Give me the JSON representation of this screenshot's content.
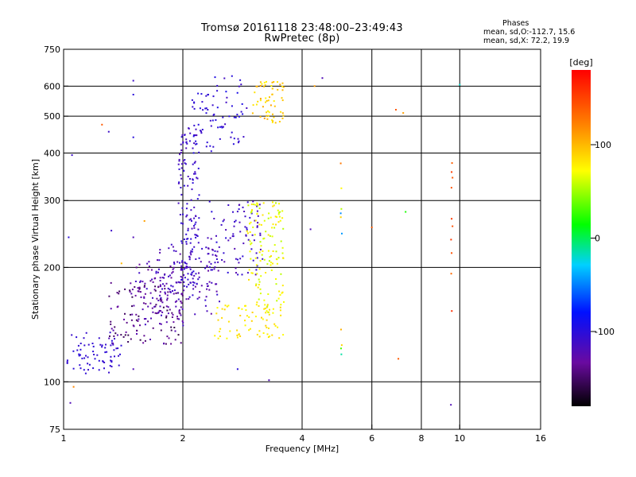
{
  "title_line1": "Tromsø 20161118 23:48:00–23:49:43",
  "title_line2": "RwPretec (8p)",
  "phases": {
    "heading": "Phases",
    "o_line": "mean, sd,O:-112.7, 15.6",
    "x_line": "mean, sd,X:  72.2, 19.9"
  },
  "colorbar": {
    "unit_label": "[deg]",
    "min": -180,
    "max": 180,
    "ticks": [
      100,
      0,
      -100
    ]
  },
  "chart_data": {
    "type": "scatter",
    "xlabel": "Frequency [MHz]",
    "ylabel": "Stationary phase Virtual Height [km]",
    "x_scale": "log",
    "y_scale": "log",
    "xlim": [
      1,
      16
    ],
    "ylim": [
      75,
      750
    ],
    "x_ticks": [
      1,
      2,
      4,
      6,
      8,
      10,
      16
    ],
    "x_grid": [
      1,
      2,
      4,
      6,
      8,
      10,
      16
    ],
    "y_ticks": [
      75,
      100,
      200,
      300,
      400,
      500,
      600,
      750
    ],
    "y_grid": [
      100,
      200,
      300,
      400,
      500,
      600
    ],
    "grid": true,
    "point_color_by": "phase_deg",
    "clusters": [
      {
        "x": [
          1.02,
          1.4
        ],
        "y": [
          105,
          135
        ],
        "phase": [
          -110,
          -100
        ],
        "n": 70
      },
      {
        "x": [
          1.3,
          2.0
        ],
        "y": [
          125,
          185
        ],
        "phase": [
          -160,
          -120
        ],
        "n": 120
      },
      {
        "x": [
          1.5,
          2.05
        ],
        "y": [
          140,
          210
        ],
        "phase": [
          -140,
          -110
        ],
        "n": 90
      },
      {
        "x": [
          1.7,
          2.5
        ],
        "y": [
          150,
          230
        ],
        "phase": [
          -130,
          -105
        ],
        "n": 110
      },
      {
        "x": [
          1.95,
          2.2
        ],
        "y": [
          180,
          470
        ],
        "phase": [
          -120,
          -100
        ],
        "n": 140
      },
      {
        "x": [
          2.1,
          2.4
        ],
        "y": [
          400,
          580
        ],
        "phase": [
          -110,
          -95
        ],
        "n": 40
      },
      {
        "x": [
          2.3,
          3.2
        ],
        "y": [
          190,
          300
        ],
        "phase": [
          -125,
          -100
        ],
        "n": 90
      },
      {
        "x": [
          2.4,
          2.9
        ],
        "y": [
          420,
          640
        ],
        "phase": [
          -115,
          -90
        ],
        "n": 40
      },
      {
        "x": [
          2.4,
          3.6
        ],
        "y": [
          130,
          160
        ],
        "phase": [
          70,
          90
        ],
        "n": 70
      },
      {
        "x": [
          2.9,
          3.6
        ],
        "y": [
          150,
          300
        ],
        "phase": [
          55,
          85
        ],
        "n": 130
      },
      {
        "x": [
          3.0,
          3.6
        ],
        "y": [
          480,
          620
        ],
        "phase": [
          75,
          110
        ],
        "n": 60
      },
      {
        "x": [
          9.5,
          9.6
        ],
        "y": [
          125,
          380
        ],
        "phase": [
          130,
          160
        ],
        "n": 10
      },
      {
        "x": [
          5.0,
          5.05
        ],
        "y": [
          110,
          440
        ],
        "phase": [
          -60,
          160
        ],
        "n": 10
      }
    ],
    "outliers": [
      {
        "x": 1.03,
        "y": 240,
        "phase": -100
      },
      {
        "x": 1.05,
        "y": 395,
        "phase": -110
      },
      {
        "x": 1.04,
        "y": 88,
        "phase": -120
      },
      {
        "x": 1.06,
        "y": 97,
        "phase": 120
      },
      {
        "x": 1.2,
        "y": 115,
        "phase": -100
      },
      {
        "x": 1.25,
        "y": 475,
        "phase": 140
      },
      {
        "x": 1.3,
        "y": 455,
        "phase": -110
      },
      {
        "x": 1.32,
        "y": 250,
        "phase": -110
      },
      {
        "x": 1.5,
        "y": 620,
        "phase": -110
      },
      {
        "x": 1.5,
        "y": 570,
        "phase": -100
      },
      {
        "x": 1.5,
        "y": 440,
        "phase": -100
      },
      {
        "x": 1.5,
        "y": 240,
        "phase": -120
      },
      {
        "x": 1.5,
        "y": 108,
        "phase": -120
      },
      {
        "x": 1.6,
        "y": 265,
        "phase": 110
      },
      {
        "x": 1.4,
        "y": 205,
        "phase": 100
      },
      {
        "x": 2.75,
        "y": 108,
        "phase": -100
      },
      {
        "x": 3.3,
        "y": 101,
        "phase": -120
      },
      {
        "x": 4.2,
        "y": 252,
        "phase": -120
      },
      {
        "x": 4.3,
        "y": 600,
        "phase": 110
      },
      {
        "x": 4.5,
        "y": 630,
        "phase": -120
      },
      {
        "x": 6.0,
        "y": 255,
        "phase": 140
      },
      {
        "x": 6.9,
        "y": 520,
        "phase": 140
      },
      {
        "x": 7.0,
        "y": 115,
        "phase": 140
      },
      {
        "x": 7.2,
        "y": 510,
        "phase": 110
      },
      {
        "x": 7.3,
        "y": 280,
        "phase": 20
      },
      {
        "x": 9.5,
        "y": 87,
        "phase": -120
      },
      {
        "x": 10.0,
        "y": 605,
        "phase": -20
      }
    ]
  }
}
